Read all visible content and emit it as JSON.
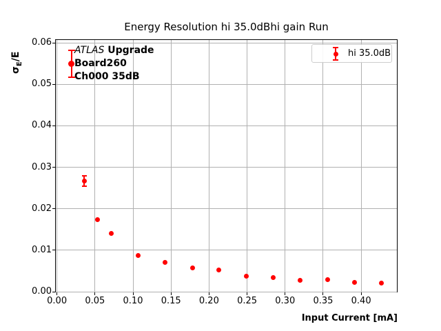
{
  "figure": {
    "title": "Energy Resolution hi 35.0dBhi gain Run",
    "xlabel": "Input Current [mA]",
    "ylabel": {
      "sigma": "σ",
      "subscript": "E",
      "rest": "/E"
    }
  },
  "legend": {
    "label": "hi 35.0dB"
  },
  "annotation": {
    "line1_italic": "ATLAS",
    "line1_bold": " Upgrade",
    "line2": "Board260",
    "line3": "Ch000 35dB"
  },
  "colors": {
    "series": "#ff0000",
    "grid": "#b0b0b0",
    "spine": "#000000",
    "legend_border": "#cccccc",
    "text": "#000000"
  },
  "chart_data": {
    "type": "scatter",
    "title": "Energy Resolution hi 35.0dBhi gain Run",
    "xlabel": "Input Current [mA]",
    "ylabel": "σ_E/E",
    "xlim": [
      -0.0015,
      0.447
    ],
    "ylim": [
      0,
      0.0607
    ],
    "x_ticks": [
      0,
      0.05,
      0.1,
      0.15,
      0.2,
      0.25,
      0.3,
      0.35,
      0.4
    ],
    "x_tick_labels": [
      "0.00",
      "0.05",
      "0.10",
      "0.15",
      "0.20",
      "0.25",
      "0.30",
      "0.35",
      "0.40"
    ],
    "y_ticks": [
      0,
      0.01,
      0.02,
      0.03,
      0.04,
      0.05,
      0.06
    ],
    "y_tick_labels": [
      "0.00",
      "0.01",
      "0.02",
      "0.03",
      "0.04",
      "0.05",
      "0.06"
    ],
    "grid": true,
    "legend_position": "upper right",
    "series": [
      {
        "name": "hi 35.0dB",
        "color": "#ff0000",
        "marker": "circle",
        "x": [
          0.036,
          0.053,
          0.071,
          0.107,
          0.142,
          0.178,
          0.213,
          0.249,
          0.284,
          0.32,
          0.356,
          0.391,
          0.427
        ],
        "y": [
          0.0267,
          0.0173,
          0.0141,
          0.0088,
          0.007,
          0.0058,
          0.0052,
          0.0037,
          0.0034,
          0.0028,
          0.0029,
          0.0023,
          0.0021
        ],
        "yerr": [
          0.0012,
          0,
          0,
          0,
          0,
          0,
          0,
          0,
          0,
          0,
          0,
          0,
          0
        ]
      }
    ],
    "annotation_marker": {
      "x": 0.019,
      "y": 0.055,
      "yerr": 0.0032
    }
  }
}
